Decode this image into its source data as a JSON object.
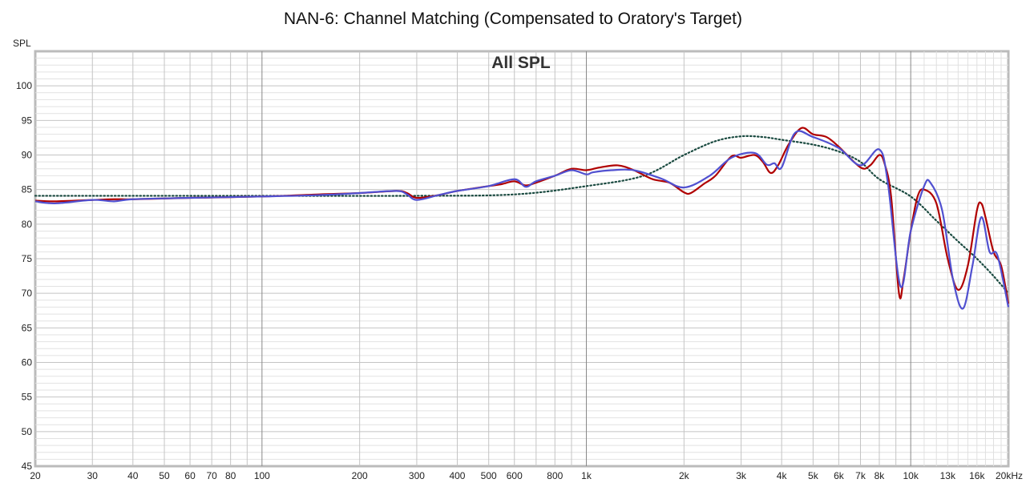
{
  "chart_data": {
    "type": "line",
    "title": "NAN-6: Channel Matching (Compensated to Oratory's Target)",
    "annotation": "All SPL",
    "ylabel": "SPL",
    "xscale": "log",
    "xlim": [
      20,
      20000
    ],
    "ylim": [
      45,
      105
    ],
    "grid": true,
    "yticks": [
      45,
      50,
      55,
      60,
      65,
      70,
      75,
      80,
      85,
      90,
      95,
      100
    ],
    "xticks": [
      {
        "value": 20,
        "label": "20"
      },
      {
        "value": 30,
        "label": "30"
      },
      {
        "value": 40,
        "label": "40"
      },
      {
        "value": 50,
        "label": "50"
      },
      {
        "value": 60,
        "label": "60"
      },
      {
        "value": 70,
        "label": "70"
      },
      {
        "value": 80,
        "label": "80"
      },
      {
        "value": 100,
        "label": "100"
      },
      {
        "value": 200,
        "label": "200"
      },
      {
        "value": 300,
        "label": "300"
      },
      {
        "value": 400,
        "label": "400"
      },
      {
        "value": 500,
        "label": "500"
      },
      {
        "value": 600,
        "label": "600"
      },
      {
        "value": 800,
        "label": "800"
      },
      {
        "value": 1000,
        "label": "1k"
      },
      {
        "value": 2000,
        "label": "2k"
      },
      {
        "value": 3000,
        "label": "3k"
      },
      {
        "value": 4000,
        "label": "4k"
      },
      {
        "value": 5000,
        "label": "5k"
      },
      {
        "value": 6000,
        "label": "6k"
      },
      {
        "value": 7000,
        "label": "7k"
      },
      {
        "value": 8000,
        "label": "8k"
      },
      {
        "value": 10000,
        "label": "10k"
      },
      {
        "value": 13000,
        "label": "13k",
        "muted": true
      },
      {
        "value": 16000,
        "label": "16k",
        "muted": true
      },
      {
        "value": 20000,
        "label": "20kHz"
      }
    ],
    "series": [
      {
        "color": "#b00000",
        "style": "solid",
        "x": [
          20,
          23,
          30,
          35,
          40,
          60,
          100,
          150,
          200,
          260,
          280,
          300,
          350,
          400,
          500,
          550,
          600,
          650,
          700,
          800,
          900,
          1000,
          1100,
          1250,
          1400,
          1600,
          1800,
          2000,
          2100,
          2300,
          2500,
          2800,
          3000,
          3300,
          3500,
          3700,
          3900,
          4200,
          4600,
          5000,
          5500,
          6000,
          7000,
          7500,
          8000,
          8300,
          8700,
          9200,
          9500,
          10000,
          10500,
          11000,
          12000,
          13000,
          14000,
          15000,
          16000,
          16500,
          17000,
          18000,
          19000,
          20000
        ],
        "y": [
          83.4,
          83.3,
          83.5,
          83.6,
          83.6,
          83.8,
          84.0,
          84.3,
          84.5,
          84.8,
          84.5,
          83.8,
          84.2,
          84.8,
          85.5,
          85.8,
          86.2,
          85.6,
          86.0,
          87.0,
          88.0,
          87.8,
          88.2,
          88.5,
          87.8,
          86.5,
          86.0,
          84.6,
          84.5,
          85.8,
          87.0,
          89.8,
          89.6,
          90.0,
          89.0,
          87.4,
          88.5,
          91.5,
          93.9,
          93.0,
          92.6,
          91.2,
          88.2,
          88.5,
          90.0,
          88.8,
          84.0,
          70.0,
          72.0,
          79.0,
          84.0,
          85.0,
          83.0,
          75.0,
          70.5,
          74.0,
          82.0,
          83.0,
          81.0,
          76.0,
          74.0,
          68.5
        ]
      },
      {
        "color": "#5050d0",
        "style": "solid",
        "x": [
          20,
          23,
          30,
          35,
          40,
          60,
          100,
          150,
          200,
          260,
          280,
          300,
          350,
          400,
          500,
          600,
          650,
          700,
          800,
          900,
          1000,
          1050,
          1200,
          1400,
          1700,
          2000,
          2400,
          2800,
          3300,
          3600,
          3800,
          4000,
          4400,
          5000,
          6000,
          7000,
          8000,
          8500,
          9300,
          10000,
          11000,
          11500,
          12500,
          13500,
          14500,
          15500,
          16500,
          17500,
          18500,
          20000
        ],
        "y": [
          83.3,
          83.0,
          83.5,
          83.3,
          83.6,
          83.8,
          84.0,
          84.2,
          84.5,
          84.8,
          84.3,
          83.5,
          84.2,
          84.8,
          85.5,
          86.5,
          85.4,
          86.2,
          87.0,
          87.8,
          87.2,
          87.5,
          87.8,
          87.8,
          86.6,
          85.3,
          87.0,
          89.6,
          90.3,
          88.6,
          88.8,
          88.2,
          93.2,
          92.6,
          91.0,
          88.5,
          90.8,
          86.0,
          71.0,
          79.0,
          85.5,
          86.0,
          82.0,
          72.0,
          67.8,
          74.0,
          81.0,
          76.0,
          75.5,
          68.0
        ]
      },
      {
        "color": "#1a4a40",
        "style": "dotted",
        "x": [
          20,
          100,
          300,
          600,
          1000,
          1500,
          2000,
          2500,
          3000,
          3500,
          4000,
          5000,
          6000,
          7000,
          8000,
          10000,
          12000,
          14000,
          16000,
          18000,
          20000
        ],
        "y": [
          84.1,
          84.1,
          84.1,
          84.3,
          85.5,
          87.0,
          90.0,
          92.0,
          92.7,
          92.6,
          92.2,
          91.5,
          90.5,
          89.0,
          86.5,
          84.0,
          80.5,
          77.5,
          75.0,
          72.5,
          70.0
        ]
      }
    ]
  }
}
